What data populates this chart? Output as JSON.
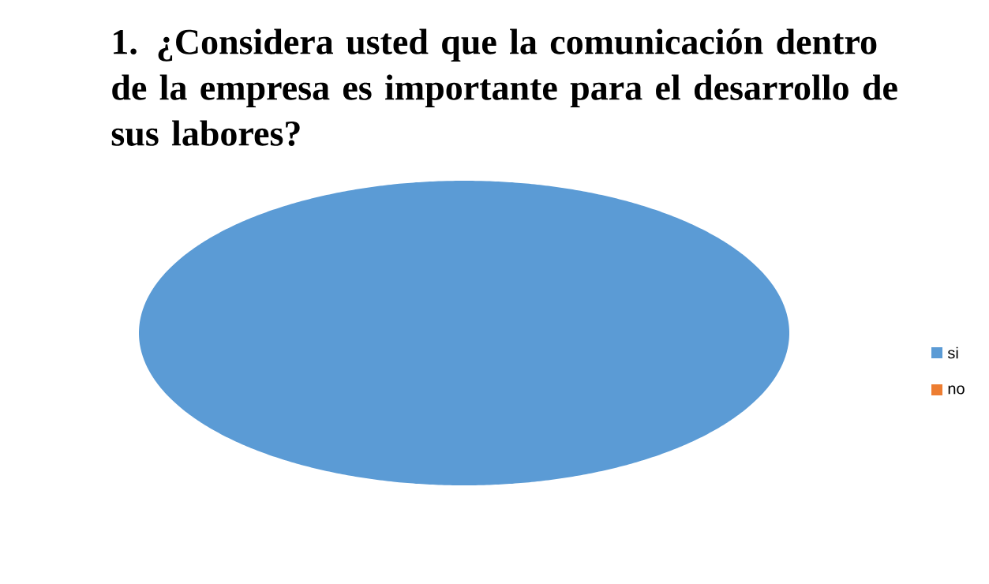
{
  "chart_data": {
    "type": "pie",
    "title": "1. ¿Considera usted que la comunicación dentro de la empresa es importante para el desarrollo de sus labores?",
    "categories": [
      "si",
      "no"
    ],
    "values": [
      100,
      0
    ],
    "colors": [
      "#5b9bd5",
      "#ed7d31"
    ],
    "legend": "right"
  }
}
